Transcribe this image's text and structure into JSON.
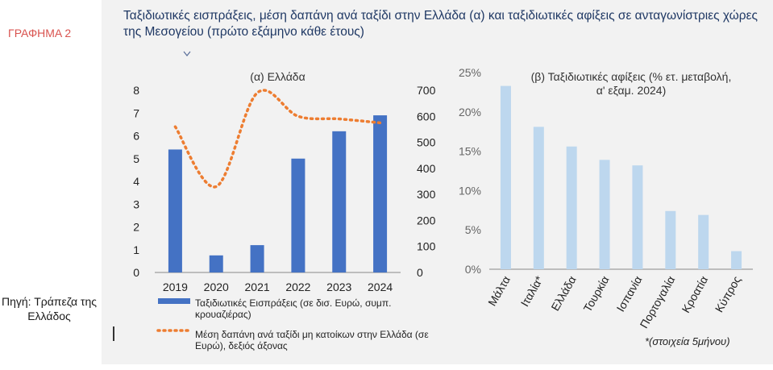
{
  "chart_number": "ΓΡΑΦΗΜΑ 2",
  "source_note": "Πηγή: Τράπεζα της Ελλάδος",
  "title": "Ταξιδιωτικές εισπράξεις, μέση δαπάνη ανά ταξίδι στην Ελλάδα (α) και ταξιδιωτικές αφίξεις σε ανταγωνίστριες χώρες της Μεσογείου (πρώτο εξάμηνο κάθε έτους)",
  "footnote": "*(στοιχεία 5μήνου)",
  "colors": {
    "bars_left": "#4472c4",
    "line": "#ed7d31",
    "bars_right": "#bdd7ee",
    "title": "#1f3864",
    "chart_number": "#d9534f"
  },
  "chart_data": [
    {
      "type": "bar",
      "title": "(α) Ελλάδα",
      "categories": [
        "2019",
        "2020",
        "2021",
        "2022",
        "2023",
        "2024"
      ],
      "series": [
        {
          "name": "Ταξιδιωτικές Εισπράξεις (σε δισ. Ευρώ, συμπ. κρουαζιέρας)",
          "type": "bar",
          "axis": "left",
          "values": [
            5.4,
            0.75,
            1.2,
            5.0,
            6.2,
            6.9
          ]
        },
        {
          "name": "Μέση δαπάνη ανά ταξίδι μη κατοίκων στην Ελλάδα (σε Ευρώ), δεξιός άξονας",
          "type": "line",
          "axis": "right",
          "values": [
            560,
            330,
            690,
            600,
            590,
            575
          ]
        }
      ],
      "ylim_left": [
        0,
        8
      ],
      "yticks_left": [
        "0",
        "1",
        "2",
        "3",
        "4",
        "5",
        "6",
        "7",
        "8"
      ],
      "ylim_right": [
        0,
        700
      ],
      "yticks_right": [
        "0",
        "100",
        "200",
        "300",
        "400",
        "500",
        "600",
        "700"
      ],
      "legend": "bottom"
    },
    {
      "type": "bar",
      "title": "(β) Ταξιδιωτικές αφίξεις (% ετ. μεταβολή, α' εξαμ. 2024)",
      "categories": [
        "Μάλτα",
        "Ιταλία*",
        "Ελλάδα",
        "Τουρκία",
        "Ισπανία",
        "Πορτογαλία",
        "Κροατία",
        "Κύπρος"
      ],
      "values": [
        23.3,
        18.1,
        15.6,
        13.9,
        13.2,
        7.4,
        6.9,
        2.3
      ],
      "ylim": [
        0,
        25
      ],
      "yticks": [
        "0%",
        "5%",
        "10%",
        "15%",
        "20%",
        "25%"
      ],
      "grid": false
    }
  ]
}
